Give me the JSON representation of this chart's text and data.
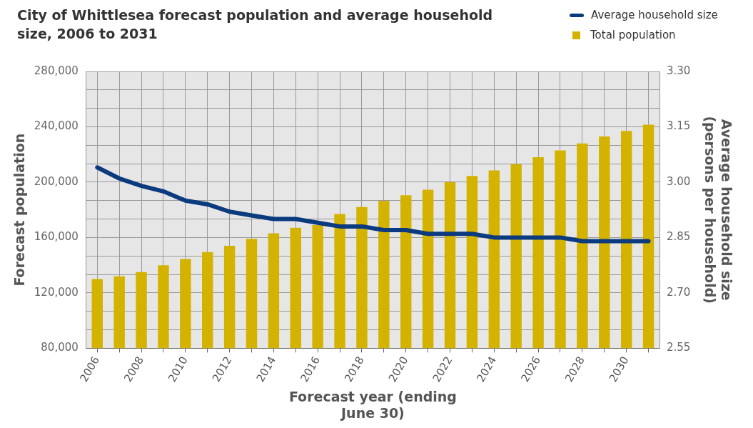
{
  "chart_data": {
    "type": "bar",
    "title": "City of Whittlesea forecast population and average household size, 2006 to 2031",
    "xlabel": "Forecast year (ending June 30)",
    "ylabel": "Forecast population",
    "y2label": "Average household size (persons per household)",
    "categories": [
      "2006",
      null,
      "2008",
      null,
      "2010",
      null,
      "2012",
      null,
      "2014",
      null,
      "2016",
      null,
      "2018",
      null,
      "2020",
      null,
      "2022",
      null,
      "2024",
      null,
      "2026",
      null,
      "2028",
      null,
      "2030",
      null
    ],
    "series": [
      {
        "name": "Average household size",
        "type": "line",
        "axis": "y2",
        "color": "#0b3a7e",
        "values": [
          3.04,
          3.01,
          2.99,
          2.975,
          2.95,
          2.94,
          2.92,
          2.91,
          2.9,
          2.9,
          2.89,
          2.88,
          2.88,
          2.87,
          2.87,
          2.86,
          2.86,
          2.86,
          2.85,
          2.85,
          2.85,
          2.85,
          2.84,
          2.84,
          2.84,
          2.84
        ]
      },
      {
        "name": "Total population",
        "color": "#d4b300",
        "values": [
          130000,
          132000,
          135000,
          140000,
          144500,
          149500,
          154000,
          159000,
          163000,
          167000,
          169000,
          177000,
          182000,
          186500,
          190500,
          194500,
          200000,
          204500,
          208500,
          213000,
          218000,
          223000,
          228000,
          233000,
          237000,
          241500
        ]
      }
    ],
    "ylim": [
      80000,
      280000
    ],
    "yticks": [
      {
        "value": 80000,
        "label": "80,000"
      },
      {
        "value": 120000,
        "label": "120,000"
      },
      {
        "value": 160000,
        "label": "160,000"
      },
      {
        "value": 200000,
        "label": "200,000"
      },
      {
        "value": 240000,
        "label": "240,000"
      },
      {
        "value": 280000,
        "label": "280,000"
      }
    ],
    "y2lim": [
      2.55,
      3.3
    ],
    "y2ticks": [
      {
        "value": 2.55,
        "label": "2.55"
      },
      {
        "value": 2.6,
        "label": null
      },
      {
        "value": 2.65,
        "label": null
      },
      {
        "value": 2.7,
        "label": "2.70"
      },
      {
        "value": 2.75,
        "label": null
      },
      {
        "value": 2.8,
        "label": null
      },
      {
        "value": 2.85,
        "label": "2.85"
      },
      {
        "value": 2.9,
        "label": null
      },
      {
        "value": 2.95,
        "label": null
      },
      {
        "value": 3.0,
        "label": "3.00"
      },
      {
        "value": 3.05,
        "label": null
      },
      {
        "value": 3.1,
        "label": null
      },
      {
        "value": 3.15,
        "label": "3.15"
      },
      {
        "value": 3.2,
        "label": null
      },
      {
        "value": 3.25,
        "label": null
      },
      {
        "value": 3.3,
        "label": "3.30"
      }
    ],
    "grid": true,
    "legend": "top right",
    "marker": "none",
    "line_style": "solid"
  }
}
